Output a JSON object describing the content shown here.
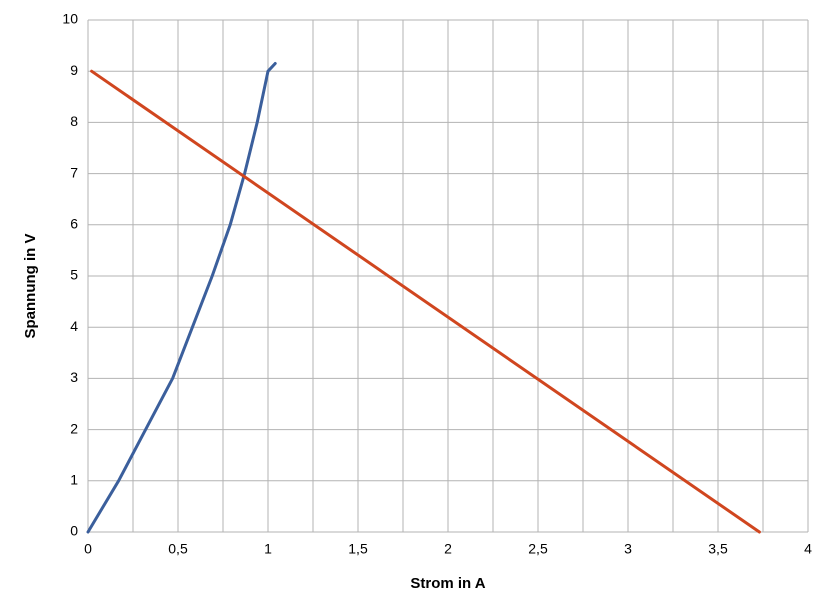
{
  "chart_data": {
    "type": "line",
    "x_label": "Strom in A",
    "y_label": "Spannung in V",
    "xlim": [
      0,
      4
    ],
    "ylim": [
      0,
      10
    ],
    "xticks": [
      0,
      {
        "value": 0.5,
        "label": "0,5"
      },
      1,
      {
        "value": 1.5,
        "label": "1,5"
      },
      2,
      {
        "value": 2.5,
        "label": "2,5"
      },
      3,
      {
        "value": 3.5,
        "label": "3,5"
      },
      4
    ],
    "x_minor_ticks": [
      0.25,
      0.75,
      1.25,
      1.75,
      2.25,
      2.75,
      3.25,
      3.75
    ],
    "yticks": [
      0,
      1,
      2,
      3,
      4,
      5,
      6,
      7,
      8,
      9,
      10
    ],
    "grid": true,
    "series": [
      {
        "color": "#3b5f9c",
        "x": [
          0,
          0.17,
          0.32,
          0.47,
          0.58,
          0.69,
          0.79,
          0.87,
          0.94,
          1.0,
          1.04
        ],
        "values": [
          0,
          1,
          2,
          3,
          4,
          5,
          6,
          7,
          8,
          9,
          9.15
        ]
      },
      {
        "color": "#d0461f",
        "x": [
          0.02,
          3.73
        ],
        "values": [
          9,
          0
        ]
      }
    ]
  }
}
